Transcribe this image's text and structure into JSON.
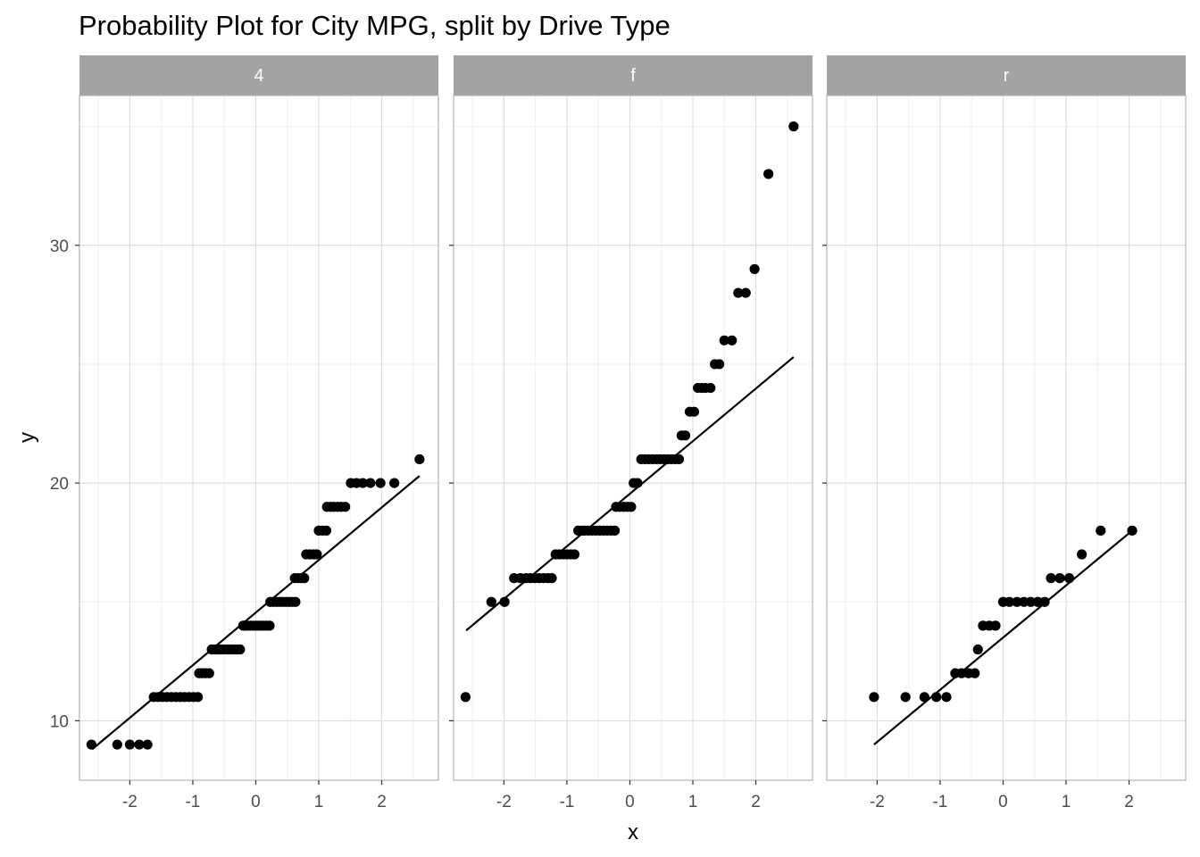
{
  "chart_data": {
    "type": "scatter",
    "title": "Probability Plot for City MPG, split by Drive Type",
    "xlabel": "x",
    "ylabel": "y",
    "xlim": [
      -2.8,
      2.9
    ],
    "ylim": [
      7.5,
      36.3
    ],
    "x_ticks": [
      -2,
      -1,
      0,
      1,
      2
    ],
    "y_ticks": [
      10,
      20,
      30
    ],
    "grid": true,
    "theme_colors": {
      "strip": "#a3a3a3",
      "grid_major": "#dedede",
      "grid_minor": "#efefef",
      "border": "#b3b3b3",
      "points": "#000000"
    },
    "panels": [
      {
        "label": "4",
        "line": {
          "x": [
            -2.6,
            2.6
          ],
          "y": [
            8.8,
            20.3
          ]
        },
        "points": {
          "x": [
            -2.61,
            -2.2,
            -2.0,
            -1.85,
            -1.72,
            -1.62,
            -1.55,
            -1.48,
            -1.41,
            -1.34,
            -1.27,
            -1.2,
            -1.13,
            -1.06,
            -0.99,
            -0.92,
            -0.9,
            -0.85,
            -0.8,
            -0.74,
            -0.7,
            -0.65,
            -0.6,
            -0.55,
            -0.5,
            -0.45,
            -0.4,
            -0.35,
            -0.3,
            -0.25,
            -0.2,
            -0.18,
            -0.13,
            -0.08,
            -0.03,
            0.02,
            0.07,
            0.12,
            0.17,
            0.22,
            0.23,
            0.28,
            0.33,
            0.38,
            0.43,
            0.48,
            0.53,
            0.58,
            0.63,
            0.62,
            0.67,
            0.72,
            0.77,
            0.8,
            0.86,
            0.92,
            0.97,
            1.0,
            1.06,
            1.12,
            1.13,
            1.19,
            1.24,
            1.3,
            1.35,
            1.42,
            1.51,
            1.6,
            1.7,
            1.82,
            1.98,
            2.2,
            2.6
          ],
          "y": [
            9,
            9,
            9,
            9,
            9,
            11,
            11,
            11,
            11,
            11,
            11,
            11,
            11,
            11,
            11,
            11,
            12,
            12,
            12,
            12,
            13,
            13,
            13,
            13,
            13,
            13,
            13,
            13,
            13,
            13,
            14,
            14,
            14,
            14,
            14,
            14,
            14,
            14,
            14,
            14,
            15,
            15,
            15,
            15,
            15,
            15,
            15,
            15,
            15,
            16,
            16,
            16,
            16,
            17,
            17,
            17,
            17,
            18,
            18,
            18,
            19,
            19,
            19,
            19,
            19,
            19,
            20,
            20,
            20,
            20,
            20,
            20,
            21
          ]
        }
      },
      {
        "label": "f",
        "line": {
          "x": [
            -2.6,
            2.6
          ],
          "y": [
            13.8,
            25.3
          ]
        },
        "points": {
          "x": [
            -2.61,
            -2.2,
            -1.99,
            -1.84,
            -1.74,
            -1.65,
            -1.58,
            -1.51,
            -1.44,
            -1.37,
            -1.3,
            -1.24,
            -1.18,
            -1.12,
            -1.06,
            -1.0,
            -0.94,
            -0.88,
            -0.82,
            -0.76,
            -0.72,
            -0.66,
            -0.6,
            -0.54,
            -0.48,
            -0.42,
            -0.36,
            -0.3,
            -0.24,
            -0.22,
            -0.16,
            -0.1,
            -0.04,
            0.02,
            0.06,
            0.12,
            0.18,
            0.24,
            0.3,
            0.36,
            0.42,
            0.48,
            0.54,
            0.6,
            0.66,
            0.72,
            0.78,
            0.82,
            0.88,
            0.95,
            1.02,
            1.08,
            1.14,
            1.2,
            1.28,
            1.35,
            1.42,
            1.5,
            1.62,
            1.72,
            1.84,
            1.98,
            2.2,
            2.6
          ],
          "y": [
            11,
            15,
            15,
            16,
            16,
            16,
            16,
            16,
            16,
            16,
            16,
            16,
            17,
            17,
            17,
            17,
            17,
            17,
            18,
            18,
            18,
            18,
            18,
            18,
            18,
            18,
            18,
            18,
            18,
            19,
            19,
            19,
            19,
            19,
            20,
            20,
            21,
            21,
            21,
            21,
            21,
            21,
            21,
            21,
            21,
            21,
            21,
            22,
            22,
            23,
            23,
            24,
            24,
            24,
            24,
            25,
            25,
            26,
            26,
            28,
            28,
            29,
            33,
            35
          ]
        }
      },
      {
        "label": "r",
        "line": {
          "x": [
            -2.05,
            2.05
          ],
          "y": [
            9.0,
            18.0
          ]
        },
        "points": {
          "x": [
            -2.05,
            -1.55,
            -1.25,
            -1.06,
            -0.9,
            -0.76,
            -0.66,
            -0.55,
            -0.45,
            -0.4,
            -0.32,
            -0.22,
            -0.12,
            0.0,
            0.1,
            0.22,
            0.33,
            0.44,
            0.55,
            0.66,
            0.76,
            0.9,
            1.05,
            1.25,
            1.55,
            2.05
          ],
          "y": [
            11,
            11,
            11,
            11,
            11,
            12,
            12,
            12,
            12,
            13,
            14,
            14,
            14,
            15,
            15,
            15,
            15,
            15,
            15,
            15,
            16,
            16,
            16,
            17,
            18,
            18
          ]
        }
      }
    ]
  }
}
